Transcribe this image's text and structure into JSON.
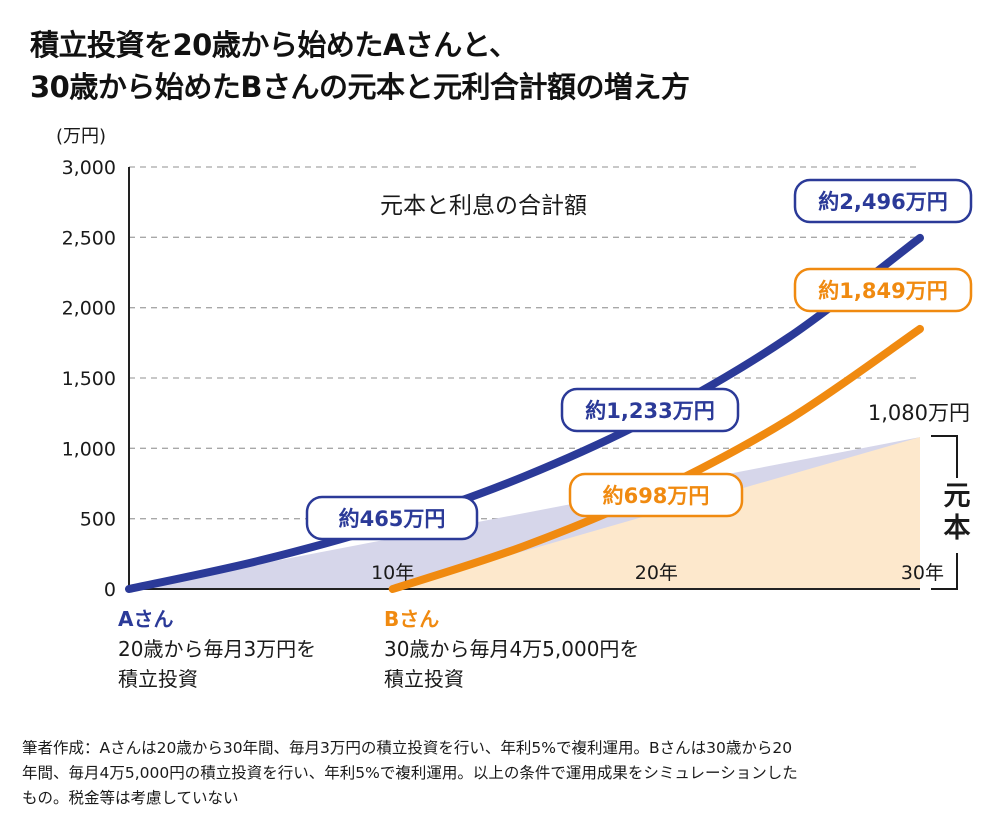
{
  "title": {
    "line1": "積立投資を20歳から始めたAさんと、",
    "line2": "30歳から始めたBさんの元本と元利合計額の増え方"
  },
  "colors": {
    "a_line": "#2b3a98",
    "b_line": "#f08a10",
    "a_principal_fill": "#d6d6ea",
    "b_principal_fill": "#fde8cc",
    "grid": "#a8a8a8",
    "axis": "#222222"
  },
  "chart_data": {
    "type": "line",
    "title": "元本と利息の合計額",
    "xlabel": "",
    "ylabel": "(万円)",
    "xlim": [
      0,
      30
    ],
    "ylim": [
      0,
      3000
    ],
    "grid": true,
    "y_ticks": [
      0,
      500,
      1000,
      1500,
      2000,
      2500,
      3000
    ],
    "y_tick_labels": [
      "0",
      "500",
      "1,000",
      "1,500",
      "2,000",
      "2,500",
      "3,000"
    ],
    "x_ticks": [
      10,
      20,
      30
    ],
    "x_tick_labels": [
      "10年",
      "20年",
      "30年"
    ],
    "series": [
      {
        "name": "Aさん 元利合計",
        "kind": "line",
        "color_key": "a_line",
        "x": [
          0,
          5,
          10,
          15,
          20,
          25,
          30
        ],
        "values": [
          0,
          204,
          465,
          801,
          1233,
          1787,
          2496
        ]
      },
      {
        "name": "Bさん 元利合計",
        "kind": "line",
        "color_key": "b_line",
        "x": [
          10,
          15,
          20,
          25,
          30
        ],
        "values": [
          0,
          306,
          698,
          1202,
          1849
        ]
      },
      {
        "name": "Aさん 元本",
        "kind": "area",
        "color_key": "a_principal_fill",
        "x": [
          0,
          30
        ],
        "values": [
          0,
          1080
        ]
      },
      {
        "name": "Bさん 元本",
        "kind": "area",
        "color_key": "b_principal_fill",
        "x": [
          10,
          30
        ],
        "values": [
          0,
          1080
        ]
      }
    ],
    "annotations": [
      {
        "text": "約465万円",
        "x": 10,
        "y": 465,
        "series": "A"
      },
      {
        "text": "約1,233万円",
        "x": 20,
        "y": 1233,
        "series": "A"
      },
      {
        "text": "約2,496万円",
        "x": 30,
        "y": 2496,
        "series": "A"
      },
      {
        "text": "約698万円",
        "x": 20,
        "y": 698,
        "series": "B"
      },
      {
        "text": "約1,849万円",
        "x": 30,
        "y": 1849,
        "series": "B"
      },
      {
        "text": "1,080万円",
        "x": 30,
        "y": 1080,
        "series": "principal"
      }
    ],
    "bracket_label": "元本"
  },
  "legend": {
    "a": {
      "name": "Aさん",
      "line1": "20歳から毎月3万円を",
      "line2": "積立投資"
    },
    "b": {
      "name": "Bさん",
      "line1": "30歳から毎月4万5,000円を",
      "line2": "積立投資"
    }
  },
  "footnote": {
    "line1": "筆者作成：Aさんは20歳から30年間、毎月3万円の積立投資を行い、年利5%で複利運用。Bさんは30歳から20",
    "line2": "年間、毎月4万5,000円の積立投資を行い、年利5%で複利運用。以上の条件で運用成果をシミュレーションした",
    "line3": "もの。税金等は考慮していない"
  }
}
